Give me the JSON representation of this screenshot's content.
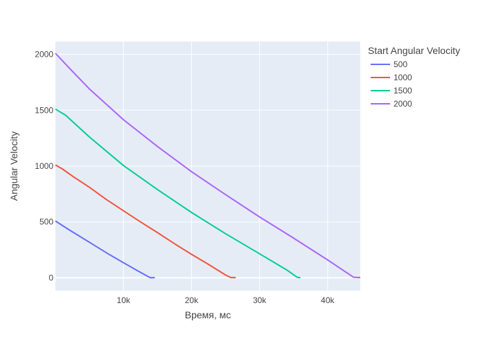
{
  "chart_data": {
    "type": "line",
    "xlabel": "Время, мс",
    "ylabel": "Angular Velocity",
    "legend_title": "Start Angular Velocity",
    "legend_position": "right",
    "grid": true,
    "xlim": [
      0,
      44800
    ],
    "ylim": [
      -115,
      2115
    ],
    "x_ticks": [
      10000,
      20000,
      30000,
      40000
    ],
    "x_tick_labels": [
      "10k",
      "20k",
      "30k",
      "40k"
    ],
    "y_ticks": [
      0,
      500,
      1000,
      1500,
      2000
    ],
    "y_tick_labels": [
      "0",
      "500",
      "1000",
      "1500",
      "2000"
    ],
    "series": [
      {
        "name": "500",
        "color": "#636efa",
        "x": [
          0,
          2000,
          4000,
          6000,
          8000,
          10000,
          12000,
          13800,
          14000,
          14600
        ],
        "y": [
          508,
          430,
          355,
          280,
          205,
          135,
          65,
          5,
          0,
          2
        ]
      },
      {
        "name": "1000",
        "color": "#ef553b",
        "x": [
          0,
          1000,
          2500,
          5000,
          7500,
          10000,
          12500,
          15000,
          17500,
          20000,
          22500,
          25000,
          25800,
          26500
        ],
        "y": [
          1010,
          975,
          910,
          810,
          700,
          600,
          500,
          405,
          305,
          210,
          120,
          25,
          2,
          2
        ]
      },
      {
        "name": "1500",
        "color": "#00cc96",
        "x": [
          0,
          1500,
          5000,
          10000,
          15000,
          20000,
          25000,
          30000,
          34000,
          35500,
          36000
        ],
        "y": [
          1510,
          1455,
          1260,
          1005,
          790,
          585,
          395,
          215,
          70,
          5,
          0
        ]
      },
      {
        "name": "2000",
        "color": "#ab63fa",
        "x": [
          0,
          2000,
          5000,
          10000,
          15000,
          20000,
          25000,
          30000,
          35000,
          40000,
          43800,
          44800
        ],
        "y": [
          2010,
          1880,
          1690,
          1415,
          1175,
          950,
          745,
          545,
          355,
          160,
          5,
          2
        ]
      }
    ]
  }
}
